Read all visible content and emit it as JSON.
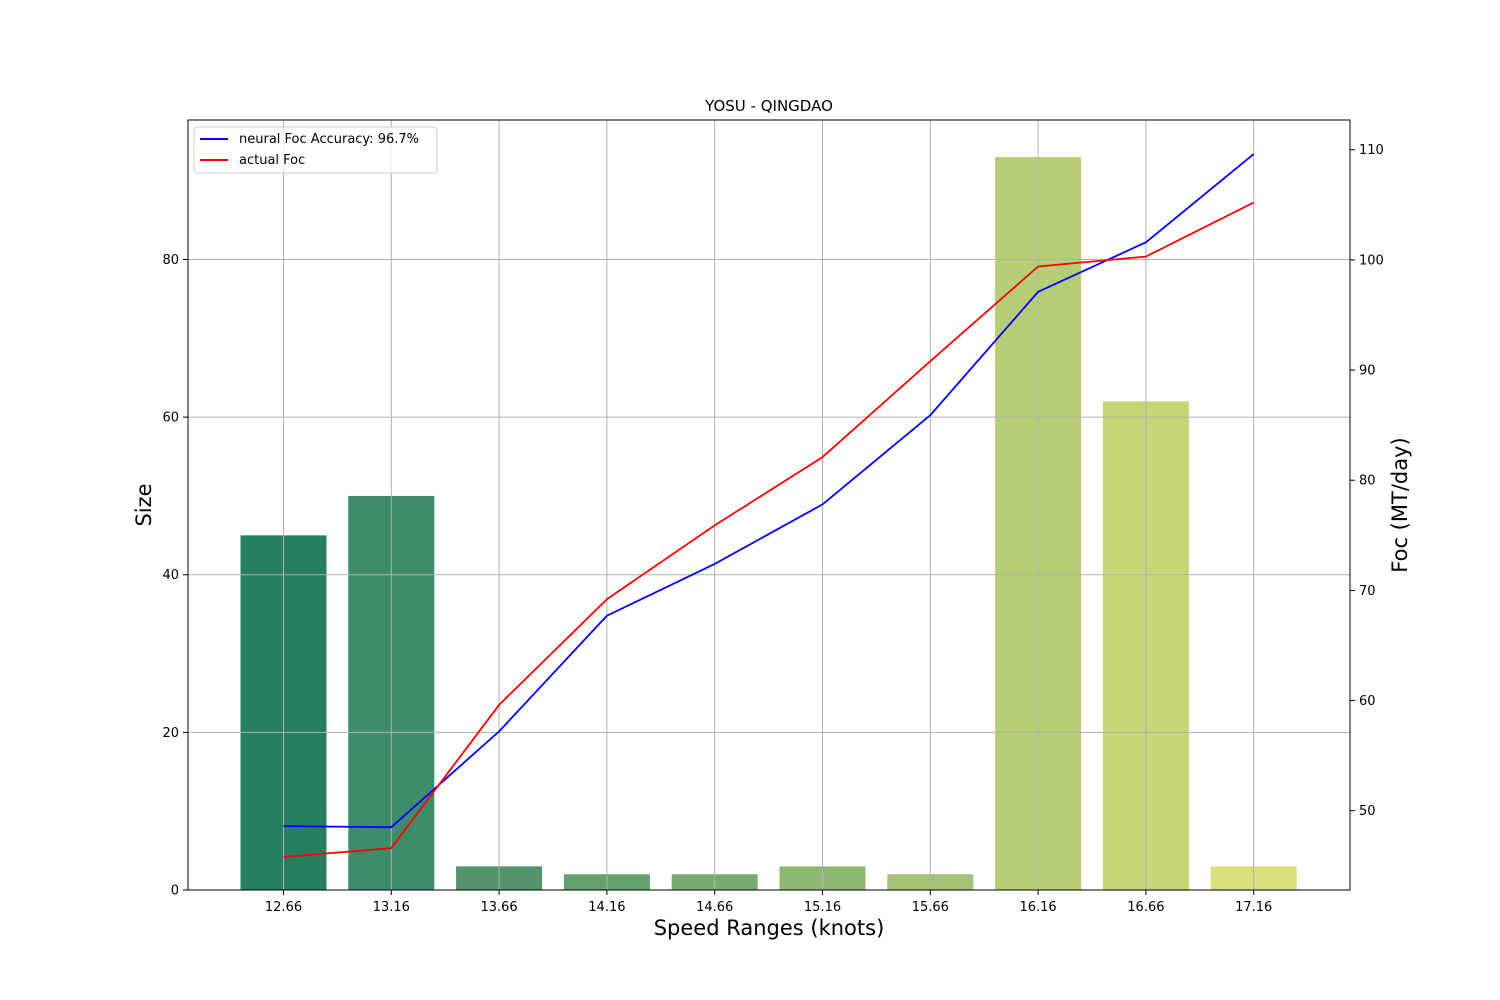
{
  "chart_data": {
    "type": "bar",
    "title": "YOSU - QINGDAO",
    "xlabel": "Speed Ranges (knots)",
    "ylabel": "Size",
    "y2label": "Foc (MT/day)",
    "categories": [
      "12.66",
      "13.16",
      "13.66",
      "14.16",
      "14.66",
      "15.16",
      "15.66",
      "16.16",
      "16.66",
      "17.16"
    ],
    "ylim": [
      0,
      97.7
    ],
    "yticks": [
      0,
      20,
      40,
      60,
      80
    ],
    "y2lim": [
      42.8,
      112.7
    ],
    "y2ticks": [
      50,
      60,
      70,
      80,
      90,
      100,
      110
    ],
    "grid": true,
    "legend_position": "top-left",
    "bars": {
      "values": [
        45,
        50,
        3,
        2,
        2,
        3,
        2,
        93,
        62,
        3
      ],
      "colors": [
        "#267e63",
        "#3e8c6a",
        "#55946a",
        "#65a16c",
        "#76ad6e",
        "#8fb874",
        "#a3c276",
        "#b5ce76",
        "#c4d676",
        "#d9e07c"
      ]
    },
    "series": [
      {
        "name": "neural Foc Accuracy: 96.7%",
        "color": "#0000ff",
        "axis": "right",
        "values": [
          48.6,
          48.5,
          57.2,
          67.7,
          72.4,
          77.8,
          85.9,
          97.1,
          101.6,
          109.6
        ]
      },
      {
        "name": "actual Foc",
        "color": "#ff0000",
        "axis": "right",
        "values": [
          45.8,
          46.6,
          59.6,
          69.2,
          75.9,
          82.1,
          90.8,
          99.4,
          100.3,
          105.2
        ]
      }
    ]
  }
}
